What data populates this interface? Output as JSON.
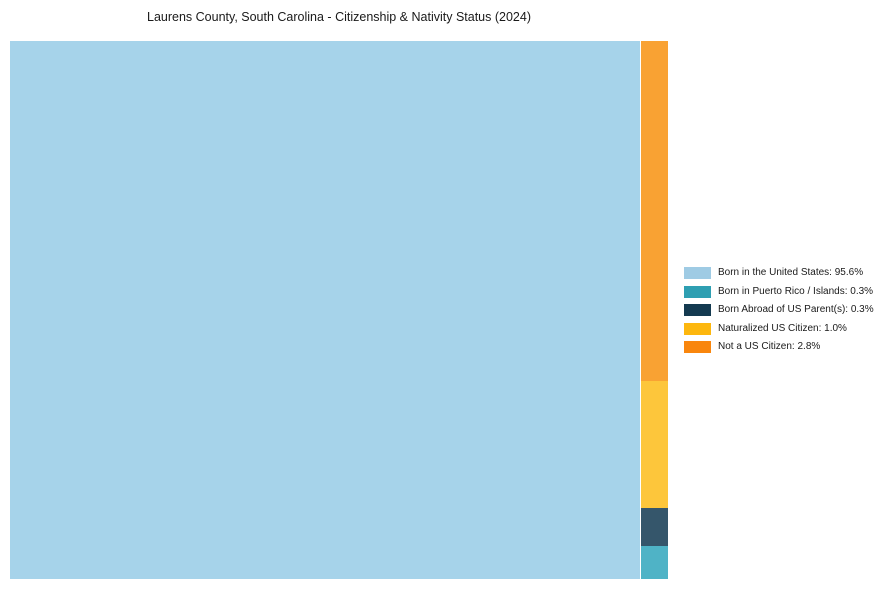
{
  "chart_data": {
    "type": "treemap",
    "title": "Laurens County, South Carolina - Citizenship & Nativity Status (2024)",
    "unit": "%",
    "categories": [
      "Born in the United States",
      "Born in Puerto Rico / Islands",
      "Born Abroad of US Parent(s)",
      "Naturalized US Citizen",
      "Not a US Citizen"
    ],
    "values": [
      95.6,
      0.3,
      0.3,
      1.0,
      2.8
    ],
    "tile_colors": [
      "#A6D3EA",
      "#4FB3C6",
      "#35566B",
      "#FDC63B",
      "#F9A233"
    ],
    "layout_hints": {
      "large_tile": "Born in the United States fills the left ~96% of the plot",
      "right_column_top_to_bottom": [
        "Not a US Citizen",
        "Naturalized US Citizen",
        "Born Abroad of US Parent(s)",
        "Born in Puerto Rico / Islands"
      ],
      "legend_position": "right, vertically centered",
      "tiles_labeled": false
    }
  },
  "legend": {
    "items": [
      {
        "label": "Born in the United States: 95.6%",
        "color": "#9FCBE4"
      },
      {
        "label": "Born in Puerto Rico / Islands: 0.3%",
        "color": "#2E9FB2"
      },
      {
        "label": "Born Abroad of US Parent(s): 0.3%",
        "color": "#143A50"
      },
      {
        "label": "Naturalized US Citizen: 1.0%",
        "color": "#FDB70E"
      },
      {
        "label": "Not a US Citizen: 2.8%",
        "color": "#F9860D"
      }
    ]
  }
}
